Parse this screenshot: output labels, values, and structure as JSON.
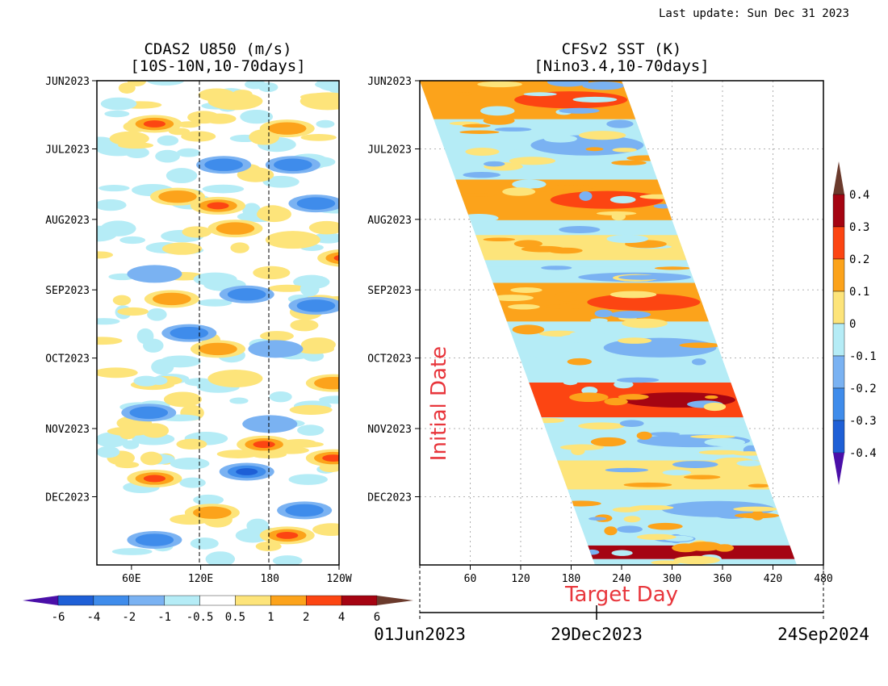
{
  "header": {
    "last_update": "Last update: Sun Dec 31 2023"
  },
  "chart_data": [
    {
      "type": "heatmap",
      "title_line1": "CDAS2 U850 (m/s)",
      "title_line2": "[10S-10N,10-70days]",
      "x_ticks": [
        "60E",
        "120E",
        "180",
        "120W"
      ],
      "y_ticks": [
        "JUN2023",
        "JUL2023",
        "AUG2023",
        "SEP2023",
        "OCT2023",
        "NOV2023",
        "DEC2023"
      ],
      "dashed_reference_lines_at": [
        "120E",
        "180"
      ],
      "colorbar": {
        "orientation": "horizontal",
        "labels": [
          "-6",
          "-4",
          "-2",
          "-1",
          "-0.5",
          "0.5",
          "1",
          "2",
          "4",
          "6"
        ],
        "colors": [
          "#4a0fa8",
          "#1e5fd6",
          "#3f8ceb",
          "#7ab2f2",
          "#b5ecf6",
          "#ffffff",
          "#fde47a",
          "#fca31b",
          "#fc4512",
          "#a50412",
          "#6b3a2c"
        ]
      },
      "series": [
        {
          "name": "",
          "blobs": [
            {
              "lon": 80,
              "date": "2023-06-20",
              "value": 4
            },
            {
              "lon": 150,
              "date": "2023-06-10",
              "value": 1
            },
            {
              "lon": 195,
              "date": "2023-06-22",
              "value": 2
            },
            {
              "lon": 230,
              "date": "2023-06-10",
              "value": 1
            },
            {
              "lon": 140,
              "date": "2023-07-08",
              "value": -2
            },
            {
              "lon": 200,
              "date": "2023-07-08",
              "value": -2
            },
            {
              "lon": 100,
              "date": "2023-07-22",
              "value": 2
            },
            {
              "lon": 135,
              "date": "2023-07-26",
              "value": 4
            },
            {
              "lon": 220,
              "date": "2023-07-25",
              "value": -2
            },
            {
              "lon": 150,
              "date": "2023-08-05",
              "value": 2
            },
            {
              "lon": 200,
              "date": "2023-08-10",
              "value": 1
            },
            {
              "lon": 245,
              "date": "2023-08-18",
              "value": 4
            },
            {
              "lon": 80,
              "date": "2023-08-25",
              "value": -1
            },
            {
              "lon": 160,
              "date": "2023-09-03",
              "value": -2
            },
            {
              "lon": 95,
              "date": "2023-09-05",
              "value": 2
            },
            {
              "lon": 220,
              "date": "2023-09-08",
              "value": -2
            },
            {
              "lon": 110,
              "date": "2023-09-20",
              "value": -2
            },
            {
              "lon": 135,
              "date": "2023-09-27",
              "value": 2
            },
            {
              "lon": 185,
              "date": "2023-09-27",
              "value": -1
            },
            {
              "lon": 150,
              "date": "2023-10-10",
              "value": 1
            },
            {
              "lon": 235,
              "date": "2023-10-12",
              "value": 2
            },
            {
              "lon": 75,
              "date": "2023-10-25",
              "value": -2
            },
            {
              "lon": 180,
              "date": "2023-10-30",
              "value": -1
            },
            {
              "lon": 175,
              "date": "2023-11-08",
              "value": 4
            },
            {
              "lon": 235,
              "date": "2023-11-14",
              "value": 4
            },
            {
              "lon": 160,
              "date": "2023-11-20",
              "value": -4
            },
            {
              "lon": 80,
              "date": "2023-11-23",
              "value": 4
            },
            {
              "lon": 130,
              "date": "2023-12-08",
              "value": 2
            },
            {
              "lon": 210,
              "date": "2023-12-07",
              "value": -2
            },
            {
              "lon": 195,
              "date": "2023-12-18",
              "value": 4
            },
            {
              "lon": 80,
              "date": "2023-12-20",
              "value": -2
            }
          ]
        }
      ]
    },
    {
      "type": "heatmap",
      "title_line1": "CFSv2 SST (K)",
      "title_line2": "[Nino3.4,10-70days]",
      "x_ticks": [
        "60",
        "120",
        "180",
        "240",
        "300",
        "360",
        "420",
        "480"
      ],
      "xlabel": "Target Day",
      "ylabel": "Initial Date",
      "y_ticks": [
        "JUN2023",
        "JUL2023",
        "AUG2023",
        "SEP2023",
        "OCT2023",
        "NOV2023",
        "DEC2023"
      ],
      "date_axis_labels": [
        "01Jun2023",
        "29Dec2023",
        "24Sep2024"
      ],
      "colorbar": {
        "orientation": "vertical",
        "labels": [
          "0.4",
          "0.3",
          "0.2",
          "0.1",
          "0",
          "-0.1",
          "-0.2",
          "-0.3",
          "-0.4"
        ],
        "colors": [
          "#6b3a2c",
          "#a50412",
          "#fc4512",
          "#fca31b",
          "#fde47a",
          "#b5ecf6",
          "#7ab2f2",
          "#3f8ceb",
          "#1e5fd6",
          "#4a0fa8"
        ]
      },
      "series": [
        {
          "name": "",
          "bands": [
            {
              "init": "2023-06-08",
              "value": 0.1
            },
            {
              "init": "2023-06-28",
              "value": -0.1
            },
            {
              "init": "2023-07-22",
              "value": 0.1
            },
            {
              "init": "2023-08-12",
              "value": 0
            },
            {
              "init": "2023-08-25",
              "value": -0.1
            },
            {
              "init": "2023-09-05",
              "value": 0.1
            },
            {
              "init": "2023-09-25",
              "value": -0.1
            },
            {
              "init": "2023-10-18",
              "value": 0.2
            },
            {
              "init": "2023-11-05",
              "value": -0.1
            },
            {
              "init": "2023-11-20",
              "value": 0
            },
            {
              "init": "2023-12-05",
              "value": -0.1
            },
            {
              "init": "2023-12-24",
              "value": 0.3
            }
          ]
        }
      ]
    }
  ]
}
